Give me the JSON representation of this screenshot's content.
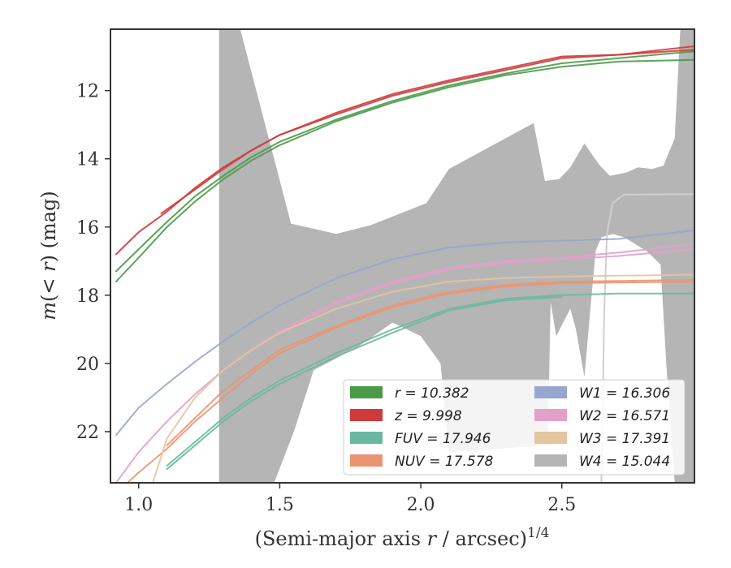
{
  "chart_data": {
    "type": "line",
    "xlabel": "(Semi-major axis r / arcsec)^{1/4}",
    "ylabel": "m(< r) (mag)",
    "xlim": [
      0.9,
      2.97
    ],
    "ylim": [
      23.5,
      10.2
    ],
    "y_inverted": true,
    "grid": false,
    "legend_position": "lower-right",
    "xticks": [
      1.0,
      1.5,
      2.0,
      2.5
    ],
    "xtick_labels": [
      "1.0",
      "1.5",
      "2.0",
      "2.5"
    ],
    "yticks": [
      12,
      14,
      16,
      18,
      20,
      22
    ],
    "ytick_labels": [
      "12",
      "14",
      "16",
      "18",
      "20",
      "22"
    ],
    "series": [
      {
        "name": "r = 10.382",
        "color": "#4a9a48",
        "kind": "line",
        "lines": [
          [
            [
              0.92,
              17.6
            ],
            [
              1.0,
              16.9
            ],
            [
              1.1,
              16.0
            ],
            [
              1.2,
              15.25
            ],
            [
              1.3,
              14.6
            ],
            [
              1.4,
              14.05
            ],
            [
              1.5,
              13.6
            ],
            [
              1.7,
              12.9
            ],
            [
              1.9,
              12.35
            ],
            [
              2.1,
              11.9
            ],
            [
              2.3,
              11.55
            ],
            [
              2.5,
              11.3
            ],
            [
              2.7,
              11.15
            ],
            [
              2.97,
              11.1
            ]
          ],
          [
            [
              0.92,
              17.3
            ],
            [
              1.0,
              16.65
            ],
            [
              1.1,
              15.85
            ],
            [
              1.2,
              15.1
            ],
            [
              1.3,
              14.5
            ],
            [
              1.4,
              13.95
            ],
            [
              1.5,
              13.5
            ],
            [
              1.7,
              12.85
            ],
            [
              1.9,
              12.3
            ],
            [
              2.1,
              11.85
            ],
            [
              2.3,
              11.5
            ],
            [
              2.5,
              11.2
            ],
            [
              2.7,
              11.05
            ],
            [
              2.97,
              10.85
            ]
          ]
        ]
      },
      {
        "name": "z = 9.998",
        "color": "#d03a3a",
        "kind": "line",
        "lines": [
          [
            [
              0.92,
              16.8
            ],
            [
              1.0,
              16.15
            ],
            [
              1.1,
              15.55
            ],
            [
              1.2,
              14.85
            ],
            [
              1.3,
              14.25
            ],
            [
              1.4,
              13.75
            ],
            [
              1.5,
              13.3
            ],
            [
              1.7,
              12.65
            ],
            [
              1.9,
              12.1
            ],
            [
              2.1,
              11.7
            ],
            [
              2.3,
              11.35
            ],
            [
              2.5,
              11.0
            ],
            [
              2.7,
              10.95
            ],
            [
              2.97,
              10.7
            ]
          ],
          [
            [
              1.08,
              15.6
            ],
            [
              1.2,
              14.9
            ],
            [
              1.3,
              14.3
            ],
            [
              1.4,
              13.75
            ],
            [
              1.5,
              13.3
            ],
            [
              1.7,
              12.7
            ],
            [
              1.9,
              12.15
            ],
            [
              2.1,
              11.75
            ],
            [
              2.3,
              11.4
            ],
            [
              2.5,
              11.05
            ],
            [
              2.7,
              10.95
            ],
            [
              2.97,
              10.8
            ]
          ]
        ]
      },
      {
        "name": "FUV = 17.946",
        "color": "#6ab8a2",
        "kind": "line",
        "lines": [
          [
            [
              1.1,
              23.0
            ],
            [
              1.2,
              22.3
            ],
            [
              1.3,
              21.6
            ],
            [
              1.4,
              21.0
            ],
            [
              1.5,
              20.5
            ],
            [
              1.7,
              19.7
            ],
            [
              1.9,
              19.0
            ],
            [
              2.1,
              18.4
            ],
            [
              2.3,
              18.1
            ],
            [
              2.5,
              18.0
            ],
            [
              2.7,
              17.95
            ],
            [
              2.97,
              17.95
            ]
          ],
          [
            [
              1.1,
              23.1
            ],
            [
              1.2,
              22.4
            ],
            [
              1.3,
              21.7
            ],
            [
              1.4,
              21.1
            ],
            [
              1.5,
              20.6
            ],
            [
              1.7,
              19.8
            ],
            [
              1.9,
              19.1
            ],
            [
              2.1,
              18.45
            ],
            [
              2.3,
              18.15
            ],
            [
              2.5,
              18.05
            ]
          ]
        ]
      },
      {
        "name": "NUV = 17.578",
        "color": "#eb9470",
        "kind": "line",
        "lines": [
          [
            [
              1.1,
              22.4
            ],
            [
              1.2,
              21.6
            ],
            [
              1.3,
              20.8
            ],
            [
              1.4,
              20.2
            ],
            [
              1.5,
              19.6
            ],
            [
              1.7,
              18.9
            ],
            [
              1.9,
              18.3
            ],
            [
              2.1,
              17.9
            ],
            [
              2.3,
              17.7
            ],
            [
              2.5,
              17.6
            ],
            [
              2.7,
              17.58
            ],
            [
              2.97,
              17.55
            ]
          ],
          [
            [
              0.92,
              23.8
            ],
            [
              1.0,
              23.2
            ],
            [
              1.1,
              22.5
            ],
            [
              1.2,
              21.7
            ],
            [
              1.3,
              21.0
            ],
            [
              1.4,
              20.3
            ],
            [
              1.5,
              19.7
            ],
            [
              1.7,
              18.95
            ],
            [
              1.9,
              18.35
            ],
            [
              2.1,
              17.95
            ],
            [
              2.3,
              17.75
            ],
            [
              2.5,
              17.65
            ],
            [
              2.97,
              17.6
            ]
          ]
        ]
      },
      {
        "name": "W1 = 16.306",
        "color": "#97a6cc",
        "kind": "line",
        "lines": [
          [
            [
              0.92,
              22.1
            ],
            [
              1.0,
              21.3
            ],
            [
              1.1,
              20.6
            ],
            [
              1.2,
              19.95
            ],
            [
              1.3,
              19.35
            ],
            [
              1.4,
              18.8
            ],
            [
              1.5,
              18.3
            ],
            [
              1.7,
              17.5
            ],
            [
              1.9,
              16.95
            ],
            [
              2.1,
              16.6
            ],
            [
              2.3,
              16.45
            ],
            [
              2.5,
              16.4
            ],
            [
              2.7,
              16.35
            ],
            [
              2.97,
              16.1
            ]
          ]
        ]
      },
      {
        "name": "W2 = 16.571",
        "color": "#e3a0c9",
        "kind": "line",
        "lines": [
          [
            [
              0.92,
              23.5
            ],
            [
              1.0,
              22.6
            ],
            [
              1.1,
              21.7
            ],
            [
              1.2,
              20.9
            ],
            [
              1.3,
              20.2
            ],
            [
              1.4,
              19.6
            ],
            [
              1.5,
              19.05
            ],
            [
              1.7,
              18.2
            ],
            [
              1.9,
              17.6
            ],
            [
              2.1,
              17.2
            ],
            [
              2.3,
              17.0
            ],
            [
              2.5,
              16.9
            ],
            [
              2.7,
              16.75
            ],
            [
              2.97,
              16.5
            ]
          ],
          [
            [
              1.5,
              19.1
            ],
            [
              1.7,
              18.25
            ],
            [
              1.9,
              17.65
            ],
            [
              2.1,
              17.25
            ],
            [
              2.3,
              17.05
            ],
            [
              2.5,
              16.95
            ],
            [
              2.7,
              16.85
            ],
            [
              2.97,
              16.65
            ]
          ]
        ]
      },
      {
        "name": "W3 = 17.391",
        "color": "#e3c59f",
        "kind": "line",
        "lines": [
          [
            [
              1.05,
              23.5
            ],
            [
              1.1,
              22.2
            ],
            [
              1.2,
              21.0
            ],
            [
              1.3,
              20.2
            ],
            [
              1.4,
              19.6
            ],
            [
              1.5,
              19.1
            ],
            [
              1.7,
              18.4
            ],
            [
              1.9,
              17.9
            ],
            [
              2.1,
              17.6
            ],
            [
              2.3,
              17.5
            ],
            [
              2.5,
              17.45
            ],
            [
              2.97,
              17.4
            ]
          ]
        ]
      },
      {
        "name": "W4 = 15.044",
        "color": "#b5b5b5",
        "kind": "band",
        "upper": [
          [
            1.285,
            10.2
          ],
          [
            1.36,
            10.2
          ],
          [
            1.54,
            15.9
          ],
          [
            1.7,
            16.2
          ],
          [
            1.82,
            15.95
          ],
          [
            2.02,
            15.3
          ],
          [
            2.1,
            14.3
          ],
          [
            2.4,
            12.95
          ],
          [
            2.44,
            14.65
          ],
          [
            2.49,
            14.6
          ],
          [
            2.53,
            14.25
          ],
          [
            2.58,
            13.55
          ],
          [
            2.63,
            14.15
          ],
          [
            2.67,
            14.5
          ],
          [
            2.73,
            14.4
          ],
          [
            2.77,
            14.25
          ],
          [
            2.82,
            14.3
          ],
          [
            2.86,
            14.2
          ],
          [
            2.9,
            13.4
          ],
          [
            2.92,
            10.2
          ],
          [
            2.97,
            10.2
          ]
        ],
        "lower": [
          [
            2.97,
            23.5
          ],
          [
            2.9,
            23.5
          ],
          [
            2.87,
            20.0
          ],
          [
            2.85,
            17.1
          ],
          [
            2.8,
            16.7
          ],
          [
            2.72,
            16.3
          ],
          [
            2.68,
            16.2
          ],
          [
            2.64,
            16.3
          ],
          [
            2.62,
            16.7
          ],
          [
            2.6,
            18.5
          ],
          [
            2.58,
            20.4
          ],
          [
            2.55,
            19.0
          ],
          [
            2.53,
            18.4
          ],
          [
            2.48,
            19.2
          ],
          [
            2.46,
            18.2
          ],
          [
            2.45,
            22.4
          ],
          [
            2.1,
            22.6
          ],
          [
            2.07,
            20.0
          ],
          [
            2.0,
            19.2
          ],
          [
            1.9,
            18.8
          ],
          [
            1.78,
            19.5
          ],
          [
            1.62,
            20.2
          ],
          [
            1.55,
            22.0
          ],
          [
            1.48,
            23.5
          ],
          [
            1.285,
            23.5
          ]
        ]
      }
    ],
    "extra_trace": {
      "color": "#cfcfcf",
      "points": [
        [
          2.64,
          23.5
        ],
        [
          2.65,
          18.5
        ],
        [
          2.66,
          16.2
        ],
        [
          2.68,
          15.3
        ],
        [
          2.72,
          15.05
        ],
        [
          2.97,
          15.04
        ]
      ]
    },
    "legend": {
      "columns": 2,
      "items": [
        {
          "label": "r = 10.382",
          "color": "#4a9a48"
        },
        {
          "label": "W1 = 16.306",
          "color": "#97a6cc"
        },
        {
          "label": "z = 9.998",
          "color": "#d03a3a"
        },
        {
          "label": "W2 = 16.571",
          "color": "#e3a0c9"
        },
        {
          "label": "FUV = 17.946",
          "color": "#6ab8a2"
        },
        {
          "label": "W3 = 17.391",
          "color": "#e3c59f"
        },
        {
          "label": "NUV = 17.578",
          "color": "#eb9470"
        },
        {
          "label": "W4 = 15.044",
          "color": "#b5b5b5"
        }
      ]
    }
  }
}
